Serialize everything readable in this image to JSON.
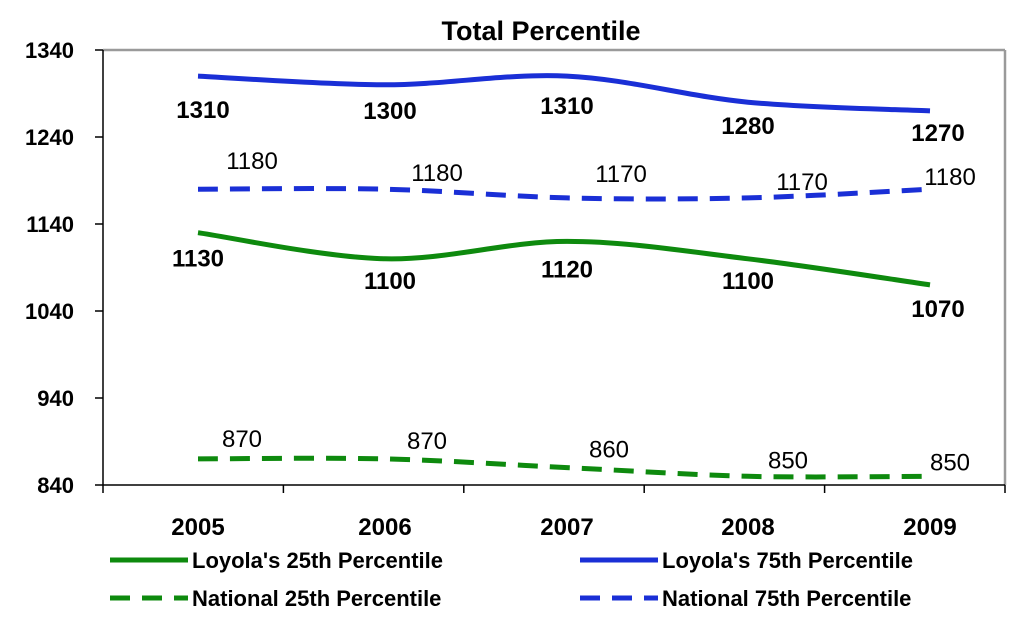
{
  "chart_data": {
    "type": "line",
    "title": "Total Percentile",
    "xlabel": "",
    "ylabel": "",
    "categories": [
      "2005",
      "2006",
      "2007",
      "2008",
      "2009"
    ],
    "yticks": [
      "840",
      "940",
      "1040",
      "1140",
      "1240",
      "1340"
    ],
    "ylim": [
      840,
      1340
    ],
    "grid": false,
    "legend_position": "bottom",
    "series": [
      {
        "name": "Loyola's 25th Percentile",
        "values": [
          1130,
          1100,
          1120,
          1100,
          1070
        ],
        "color": "#0e8a0e",
        "dash": false,
        "labels_bold": true
      },
      {
        "name": "Loyola's 75th Percentile",
        "values": [
          1310,
          1300,
          1310,
          1280,
          1270
        ],
        "color": "#1a2fd6",
        "dash": false,
        "labels_bold": true
      },
      {
        "name": "National 25th Percentile",
        "values": [
          870,
          870,
          860,
          850,
          850
        ],
        "color": "#0e8a0e",
        "dash": true,
        "labels_bold": false
      },
      {
        "name": "National 75th Percentile",
        "values": [
          1180,
          1180,
          1170,
          1170,
          1180
        ],
        "color": "#1a2fd6",
        "dash": true,
        "labels_bold": false
      }
    ]
  }
}
